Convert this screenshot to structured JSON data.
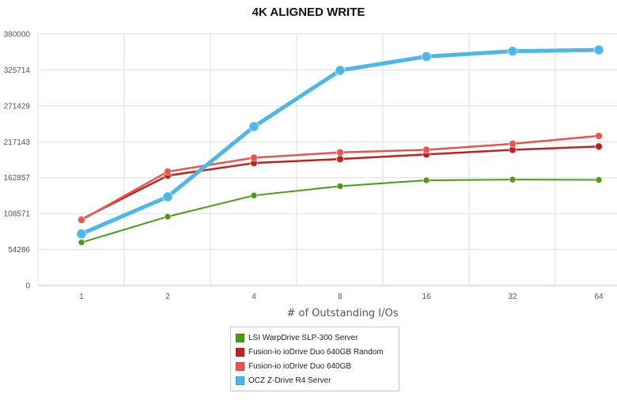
{
  "chart_data": {
    "type": "line",
    "title": "4K ALIGNED WRITE",
    "xlabel": "# of Outstanding I/Os",
    "ylabel": "",
    "categories": [
      "1",
      "2",
      "4",
      "8",
      "16",
      "32",
      "64"
    ],
    "yticks": [
      "0",
      "54286",
      "108571",
      "162857",
      "217143",
      "271429",
      "325714",
      "380000"
    ],
    "ylim": [
      0,
      380000
    ],
    "grid": true,
    "legend_position": "bottom",
    "series": [
      {
        "name": "LSI WarpDrive SLP-300 Server",
        "color": "#4a9a14",
        "values": [
          65000,
          104000,
          136000,
          150000,
          159000,
          160000,
          159500
        ]
      },
      {
        "name": "Fusion-io ioDrive Duo 640GB Random",
        "color": "#c0231e",
        "values": [
          100000,
          166000,
          185000,
          191000,
          198000,
          205000,
          210000
        ]
      },
      {
        "name": "Fusion-io ioDrive Duo 640GB",
        "color": "#ec534b",
        "values": [
          99000,
          172000,
          193000,
          201000,
          205000,
          214000,
          226000
        ]
      },
      {
        "name": "OCZ Z-Drive R4 Server",
        "color": "#4cb8ea",
        "values": [
          78000,
          134000,
          240000,
          325000,
          346000,
          354000,
          356000
        ]
      }
    ]
  }
}
